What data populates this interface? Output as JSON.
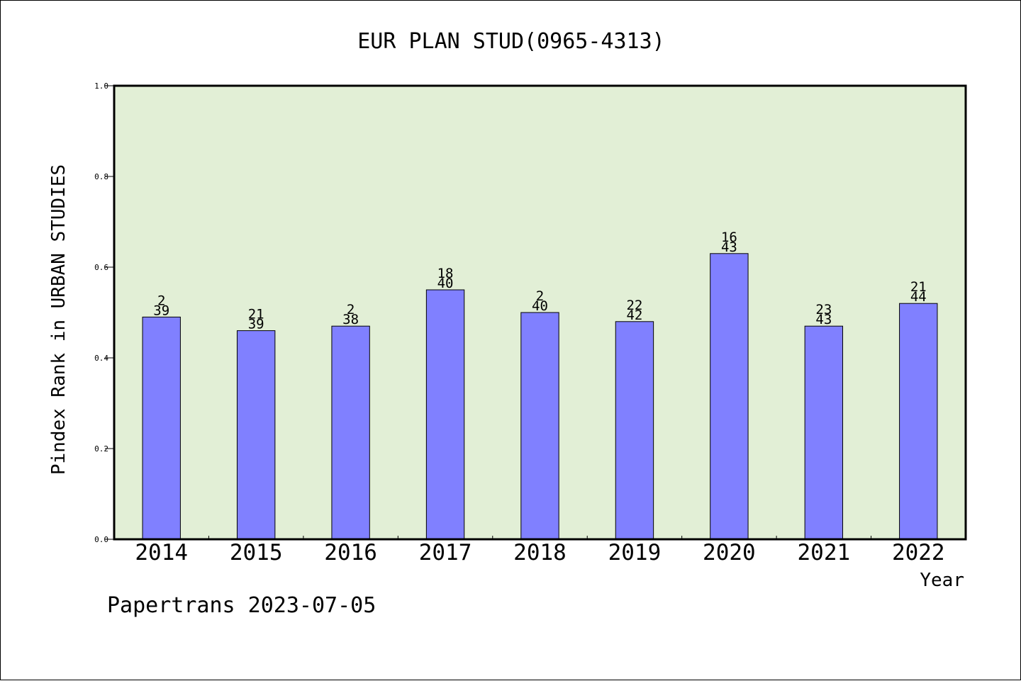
{
  "chart_data": {
    "type": "bar",
    "title": "EUR PLAN STUD(0965-4313)",
    "xlabel": "Year",
    "ylabel": "Pindex Rank in URBAN STUDIES",
    "categories": [
      "2014",
      "2015",
      "2016",
      "2017",
      "2018",
      "2019",
      "2020",
      "2021",
      "2022"
    ],
    "values": [
      0.49,
      0.46,
      0.47,
      0.55,
      0.5,
      0.48,
      0.63,
      0.47,
      0.52
    ],
    "rank": [
      "2",
      "21",
      "2",
      "18",
      "2",
      "22",
      "16",
      "23",
      "21"
    ],
    "total": [
      "39",
      "39",
      "38",
      "40",
      "40",
      "42",
      "43",
      "43",
      "44"
    ],
    "ylim": [
      0,
      1.0
    ],
    "yticks": [
      "0.0",
      "0.2",
      "0.4",
      "0.6",
      "0.8",
      "1.0"
    ],
    "grid": false,
    "colors": {
      "bar": "#8080ff",
      "plot_bg": "#e2efd6",
      "axis": "#000000"
    }
  },
  "footer": "Papertrans 2023-07-05"
}
